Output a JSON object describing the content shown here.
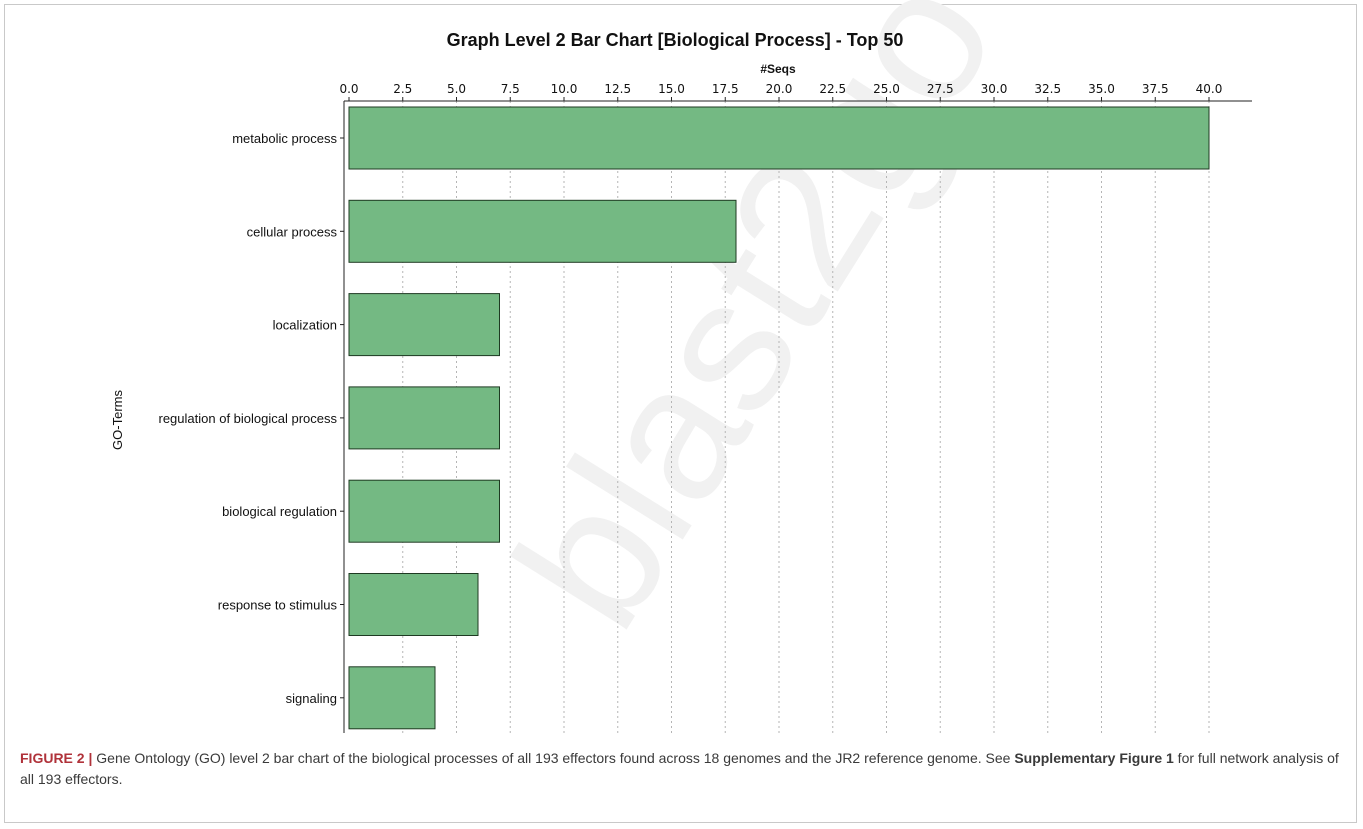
{
  "chart_data": {
    "type": "bar",
    "orientation": "horizontal",
    "title": "Graph Level 2 Bar Chart [Biological Process] - Top 50",
    "xlabel": "#Seqs",
    "ylabel": "GO-Terms",
    "xlim": [
      0,
      42
    ],
    "x_axis_position": "top",
    "ticks": [
      "0.0",
      "2.5",
      "5.0",
      "7.5",
      "10.0",
      "12.5",
      "15.0",
      "17.5",
      "20.0",
      "22.5",
      "25.0",
      "27.5",
      "30.0",
      "32.5",
      "35.0",
      "37.5",
      "40.0"
    ],
    "grid": true,
    "watermark": "blast2go",
    "bar_color": "#74b983",
    "categories": [
      "metabolic process",
      "cellular process",
      "localization",
      "regulation of biological process",
      "biological regulation",
      "response to stimulus",
      "signaling"
    ],
    "values": [
      40,
      18,
      7,
      7,
      7,
      6,
      4
    ]
  },
  "caption": {
    "label": "FIGURE 2 |",
    "text": " Gene Ontology (GO) level 2 bar chart of the biological processes of all 193 effectors found across 18 genomes and the JR2 reference genome. See ",
    "link": "Supplementary Figure 1",
    "text2": " for full network analysis of all 193 effectors."
  }
}
